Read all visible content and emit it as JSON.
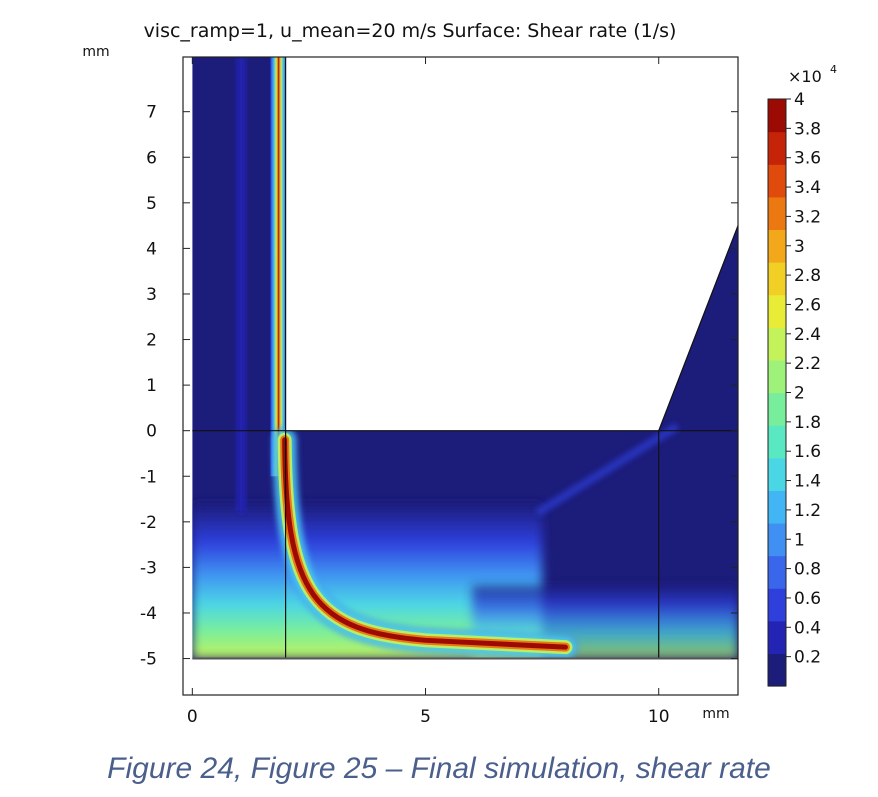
{
  "chart_data": {
    "type": "heatmap",
    "title": "visc_ramp=1, u_mean=20 m/s   Surface: Shear rate (1/s)",
    "x_unit": "mm",
    "y_unit": "mm",
    "xlim": [
      -0.2,
      11.7
    ],
    "ylim": [
      -5.8,
      8.2
    ],
    "x_ticks": [
      0,
      5,
      10
    ],
    "y_ticks": [
      7,
      6,
      5,
      4,
      3,
      2,
      1,
      0,
      -1,
      -2,
      -3,
      -4,
      -5
    ],
    "colorbar": {
      "multiplier": "×10",
      "exponent": "4",
      "min": 0,
      "max": 4,
      "ticks": [
        "4",
        "3.8",
        "3.6",
        "3.4",
        "3.2",
        "3",
        "2.8",
        "2.6",
        "2.4",
        "2.2",
        "2",
        "1.8",
        "1.6",
        "1.4",
        "1.2",
        "1",
        "0.8",
        "0.6",
        "0.4",
        "0.2"
      ],
      "tick_values": [
        4,
        3.8,
        3.6,
        3.4,
        3.2,
        3,
        2.8,
        2.6,
        2.4,
        2.2,
        2,
        1.8,
        1.6,
        1.4,
        1.2,
        1,
        0.8,
        0.6,
        0.4,
        0.2
      ],
      "colormap": [
        "#1c1c7a",
        "#2424b4",
        "#2e3fdc",
        "#3a66ec",
        "#3f90f2",
        "#42b6f4",
        "#4bd6e6",
        "#5ae8c3",
        "#78ee9c",
        "#9ef27a",
        "#c4f25a",
        "#e8ec37",
        "#f2cf25",
        "#f2a81a",
        "#ec7812",
        "#e04a0c",
        "#c62408",
        "#9c0a04"
      ]
    },
    "geometry": {
      "inlet_x": [
        0,
        2
      ],
      "inlet_y": [
        0,
        8.2
      ],
      "channel_x": [
        0,
        11.7
      ],
      "channel_y": [
        -5,
        0
      ],
      "outlet_slant": [
        [
          10,
          0
        ],
        [
          11.7,
          4.5
        ]
      ],
      "internal_lines": [
        [
          [
            2,
            -5
          ],
          [
            2,
            8.2
          ]
        ],
        [
          [
            10,
            -5
          ],
          [
            10,
            0
          ]
        ],
        [
          [
            0,
            0
          ],
          [
            11.7,
            0
          ]
        ]
      ]
    }
  },
  "caption": "Figure 24, Figure 25 – Final simulation, shear rate"
}
